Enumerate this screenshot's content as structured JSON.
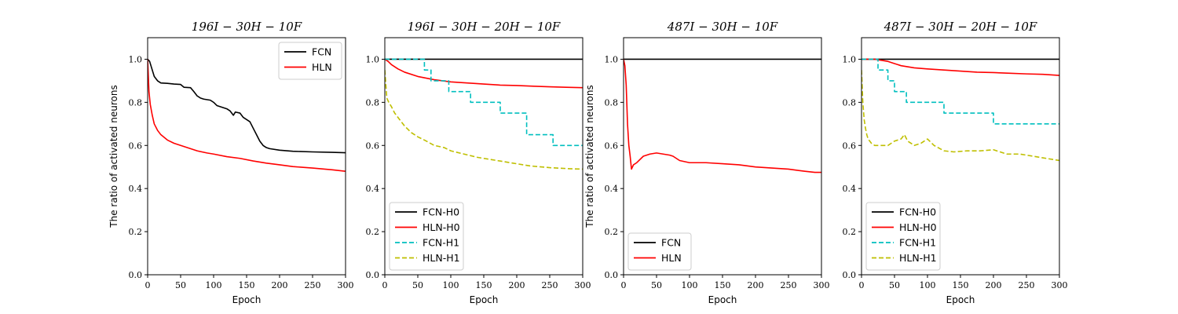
{
  "chart_data": [
    {
      "type": "line",
      "title": "196I − 30H − 10F",
      "xlabel": "Epoch",
      "ylabel": "The ratio of activated neurons",
      "xlim": [
        0,
        300
      ],
      "ylim": [
        0,
        1.1
      ],
      "xticks": [
        0,
        50,
        100,
        150,
        200,
        250,
        300
      ],
      "yticks": [
        0.0,
        0.2,
        0.4,
        0.6,
        0.8,
        1.0
      ],
      "legend": "top-right",
      "series": [
        {
          "name": "FCN",
          "color": "#000000",
          "style": "solid",
          "x": [
            0,
            3,
            6,
            10,
            15,
            20,
            30,
            40,
            50,
            55,
            65,
            70,
            75,
            80,
            85,
            95,
            100,
            105,
            110,
            120,
            125,
            130,
            133,
            140,
            145,
            150,
            155,
            160,
            165,
            170,
            175,
            180,
            185,
            200,
            220,
            250,
            280,
            300
          ],
          "y": [
            1.0,
            0.99,
            0.96,
            0.92,
            0.9,
            0.89,
            0.888,
            0.885,
            0.883,
            0.87,
            0.868,
            0.85,
            0.83,
            0.82,
            0.815,
            0.81,
            0.8,
            0.785,
            0.78,
            0.77,
            0.76,
            0.74,
            0.755,
            0.75,
            0.73,
            0.72,
            0.71,
            0.68,
            0.65,
            0.62,
            0.6,
            0.59,
            0.585,
            0.578,
            0.573,
            0.57,
            0.568,
            0.566
          ]
        },
        {
          "name": "HLN",
          "color": "#ff0000",
          "style": "solid",
          "x": [
            0,
            2,
            4,
            7,
            10,
            15,
            20,
            30,
            40,
            50,
            60,
            75,
            90,
            100,
            120,
            140,
            160,
            180,
            200,
            220,
            250,
            280,
            300
          ],
          "y": [
            1.0,
            0.85,
            0.79,
            0.74,
            0.7,
            0.67,
            0.65,
            0.625,
            0.61,
            0.6,
            0.59,
            0.575,
            0.565,
            0.56,
            0.548,
            0.54,
            0.528,
            0.518,
            0.51,
            0.502,
            0.495,
            0.487,
            0.48
          ]
        }
      ]
    },
    {
      "type": "line",
      "title": "196I − 30H − 20H − 10F",
      "xlabel": "Epoch",
      "ylabel": "",
      "xlim": [
        0,
        300
      ],
      "ylim": [
        0,
        1.1
      ],
      "xticks": [
        0,
        50,
        100,
        150,
        200,
        250,
        300
      ],
      "yticks": [
        0.0,
        0.2,
        0.4,
        0.6,
        0.8,
        1.0
      ],
      "legend": "bottom-left",
      "series": [
        {
          "name": "FCN-H0",
          "color": "#000000",
          "style": "solid",
          "x": [
            0,
            300
          ],
          "y": [
            1.0,
            1.0
          ]
        },
        {
          "name": "HLN-H0",
          "color": "#ff0000",
          "style": "solid",
          "x": [
            0,
            5,
            10,
            20,
            30,
            50,
            75,
            100,
            125,
            150,
            175,
            200,
            225,
            250,
            275,
            300
          ],
          "y": [
            1.0,
            0.99,
            0.975,
            0.955,
            0.94,
            0.92,
            0.905,
            0.895,
            0.89,
            0.885,
            0.88,
            0.878,
            0.875,
            0.872,
            0.87,
            0.868
          ]
        },
        {
          "name": "FCN-H1",
          "color": "#00bfbf",
          "style": "dashed",
          "x": [
            0,
            60,
            60,
            70,
            70,
            80,
            80,
            97,
            97,
            130,
            130,
            175,
            175,
            215,
            215,
            255,
            255,
            300
          ],
          "y": [
            1.0,
            1.0,
            0.95,
            0.95,
            0.9,
            0.9,
            0.9,
            0.9,
            0.85,
            0.85,
            0.8,
            0.8,
            0.75,
            0.75,
            0.65,
            0.65,
            0.6,
            0.6
          ]
        },
        {
          "name": "HLN-H1",
          "color": "#bfbf00",
          "style": "dashed",
          "x": [
            0,
            3,
            6,
            10,
            15,
            20,
            30,
            40,
            50,
            60,
            75,
            90,
            100,
            120,
            140,
            160,
            180,
            200,
            220,
            250,
            280,
            300
          ],
          "y": [
            0.95,
            0.82,
            0.8,
            0.78,
            0.75,
            0.73,
            0.69,
            0.66,
            0.64,
            0.625,
            0.6,
            0.59,
            0.575,
            0.56,
            0.545,
            0.535,
            0.525,
            0.515,
            0.505,
            0.497,
            0.492,
            0.49
          ]
        }
      ]
    },
    {
      "type": "line",
      "title": "487I − 30H − 10F",
      "xlabel": "Epoch",
      "ylabel": "The ratio of activated neurons",
      "xlim": [
        0,
        300
      ],
      "ylim": [
        0,
        1.1
      ],
      "xticks": [
        0,
        50,
        100,
        150,
        200,
        250,
        300
      ],
      "yticks": [
        0.0,
        0.2,
        0.4,
        0.6,
        0.8,
        1.0
      ],
      "legend": "bottom-left",
      "series": [
        {
          "name": "FCN",
          "color": "#000000",
          "style": "solid",
          "x": [
            0,
            300
          ],
          "y": [
            1.0,
            1.0
          ]
        },
        {
          "name": "HLN",
          "color": "#ff0000",
          "style": "solid",
          "x": [
            0,
            2,
            4,
            6,
            8,
            10,
            12,
            15,
            20,
            30,
            40,
            50,
            60,
            70,
            75,
            85,
            100,
            125,
            150,
            175,
            200,
            225,
            250,
            275,
            290,
            300
          ],
          "y": [
            1.0,
            0.97,
            0.88,
            0.7,
            0.6,
            0.55,
            0.49,
            0.51,
            0.52,
            0.55,
            0.56,
            0.565,
            0.56,
            0.555,
            0.55,
            0.53,
            0.52,
            0.52,
            0.515,
            0.51,
            0.5,
            0.495,
            0.49,
            0.48,
            0.475,
            0.475
          ]
        }
      ]
    },
    {
      "type": "line",
      "title": "487I − 30H − 20H − 10F",
      "xlabel": "Epoch",
      "ylabel": "",
      "xlim": [
        0,
        300
      ],
      "ylim": [
        0,
        1.1
      ],
      "xticks": [
        0,
        50,
        100,
        150,
        200,
        250,
        300
      ],
      "yticks": [
        0.0,
        0.2,
        0.4,
        0.6,
        0.8,
        1.0
      ],
      "legend": "bottom-left",
      "series": [
        {
          "name": "FCN-H0",
          "color": "#000000",
          "style": "solid",
          "x": [
            0,
            300
          ],
          "y": [
            1.0,
            1.0
          ]
        },
        {
          "name": "HLN-H0",
          "color": "#ff0000",
          "style": "solid",
          "x": [
            0,
            20,
            30,
            40,
            50,
            60,
            70,
            80,
            100,
            125,
            150,
            175,
            200,
            225,
            250,
            275,
            300
          ],
          "y": [
            1.0,
            1.0,
            0.995,
            0.99,
            0.98,
            0.97,
            0.965,
            0.96,
            0.955,
            0.95,
            0.945,
            0.94,
            0.938,
            0.935,
            0.932,
            0.93,
            0.925
          ]
        },
        {
          "name": "FCN-H1",
          "color": "#00bfbf",
          "style": "dashed",
          "x": [
            0,
            25,
            25,
            40,
            40,
            50,
            50,
            68,
            68,
            125,
            125,
            200,
            200,
            300
          ],
          "y": [
            1.0,
            1.0,
            0.95,
            0.95,
            0.9,
            0.9,
            0.85,
            0.85,
            0.8,
            0.8,
            0.75,
            0.75,
            0.7,
            0.7
          ]
        },
        {
          "name": "HLN-H1",
          "color": "#bfbf00",
          "style": "dashed",
          "x": [
            0,
            2,
            4,
            6,
            8,
            10,
            15,
            20,
            30,
            40,
            50,
            60,
            65,
            70,
            80,
            90,
            100,
            110,
            125,
            140,
            160,
            180,
            200,
            220,
            240,
            260,
            280,
            300
          ],
          "y": [
            0.95,
            0.8,
            0.72,
            0.68,
            0.65,
            0.63,
            0.61,
            0.6,
            0.6,
            0.6,
            0.62,
            0.63,
            0.65,
            0.62,
            0.6,
            0.61,
            0.63,
            0.6,
            0.575,
            0.57,
            0.575,
            0.575,
            0.58,
            0.56,
            0.56,
            0.55,
            0.54,
            0.53
          ]
        }
      ]
    }
  ]
}
